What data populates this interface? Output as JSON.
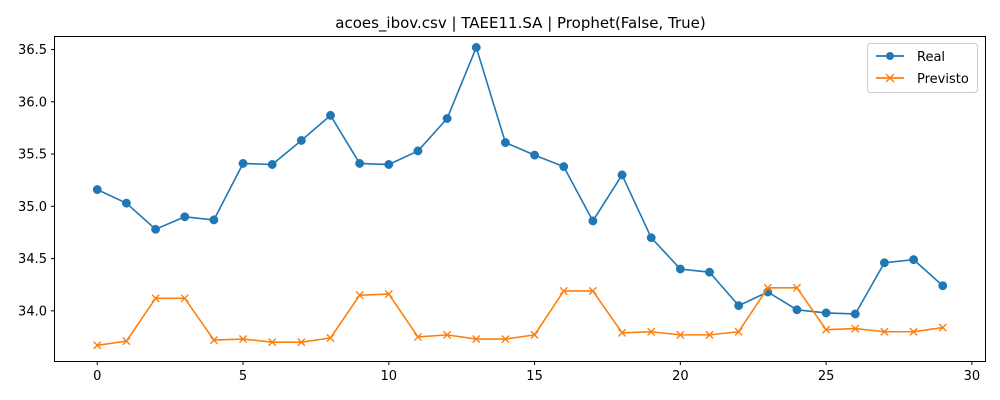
{
  "chart_data": {
    "type": "line",
    "title": "acoes_ibov.csv | TAEE11.SA | Prophet(False, True)",
    "xlabel": "",
    "ylabel": "",
    "x": [
      0,
      1,
      2,
      3,
      4,
      5,
      6,
      7,
      8,
      9,
      10,
      11,
      12,
      13,
      14,
      15,
      16,
      17,
      18,
      19,
      20,
      21,
      22,
      23,
      24,
      25,
      26,
      27,
      28,
      29
    ],
    "xlim": [
      -1.45,
      30.45
    ],
    "ylim": [
      33.52,
      36.62
    ],
    "xticks": [
      0,
      5,
      10,
      15,
      20,
      25,
      30
    ],
    "xtick_labels": [
      "0",
      "5",
      "10",
      "15",
      "20",
      "25",
      "30"
    ],
    "yticks": [
      34.0,
      34.5,
      35.0,
      35.5,
      36.0,
      36.5
    ],
    "ytick_labels": [
      "34.0",
      "34.5",
      "35.0",
      "35.5",
      "36.0",
      "36.5"
    ],
    "grid": false,
    "legend_position": "top-right",
    "series": [
      {
        "name": "Real",
        "color": "#1f77b4",
        "marker": "circle",
        "values": [
          35.16,
          35.03,
          34.78,
          34.9,
          34.87,
          35.41,
          35.4,
          35.63,
          35.87,
          35.41,
          35.4,
          35.53,
          35.84,
          36.52,
          35.61,
          35.49,
          35.38,
          34.86,
          35.3,
          34.7,
          34.4,
          34.37,
          34.05,
          34.18,
          34.01,
          33.98,
          33.97,
          34.46,
          34.49,
          34.24
        ]
      },
      {
        "name": "Previsto",
        "color": "#ff7f0e",
        "marker": "x",
        "values": [
          33.67,
          33.71,
          34.12,
          34.12,
          33.72,
          33.73,
          33.7,
          33.7,
          33.74,
          34.15,
          34.16,
          33.75,
          33.77,
          33.73,
          33.73,
          33.77,
          34.19,
          34.19,
          33.79,
          33.8,
          33.77,
          33.77,
          33.8,
          34.22,
          34.22,
          33.82,
          33.83,
          33.8,
          33.8,
          33.84
        ]
      }
    ]
  }
}
